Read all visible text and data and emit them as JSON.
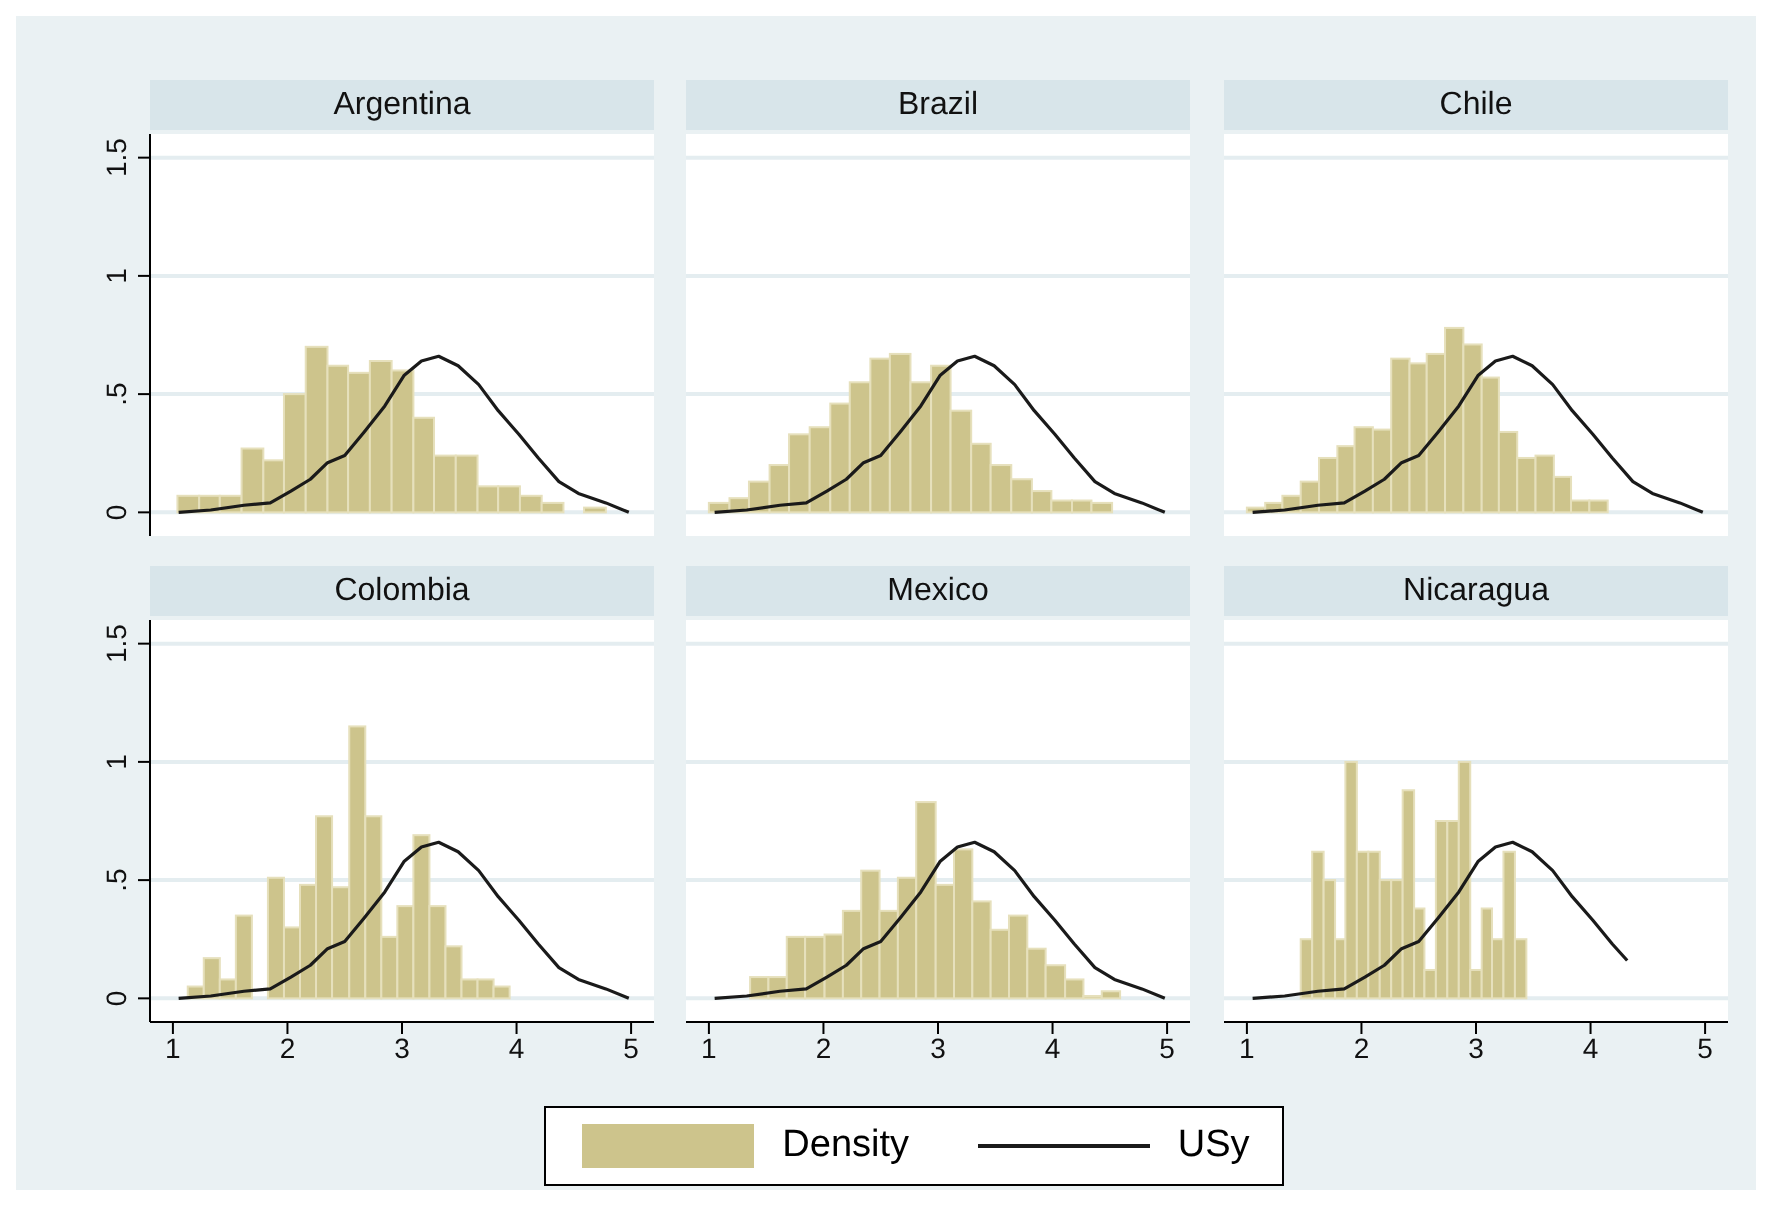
{
  "chart_data": [
    {
      "type": "histogram",
      "title": "Argentina",
      "xlim": [
        0.8,
        5.2
      ],
      "ylim": [
        -0.1,
        1.6
      ],
      "xticks": [
        1,
        2,
        3,
        4,
        5
      ],
      "yticks": [
        {
          "value": 0,
          "label": "0"
        },
        {
          "value": 0.5,
          "label": ".5"
        },
        {
          "value": 1,
          "label": "1"
        },
        {
          "value": 1.5,
          "label": "1.5"
        }
      ],
      "grid": "y",
      "legend": "bottom",
      "tick_labels": "y",
      "series": [
        {
          "name": "Density",
          "color": "#cdc48c",
          "bins": [
            1.04,
            1.23,
            1.41,
            1.6,
            1.79,
            1.97,
            2.16,
            2.35,
            2.53,
            2.72,
            2.91,
            3.1,
            3.28,
            3.47,
            3.66,
            3.84,
            4.03,
            4.22,
            4.41,
            4.59,
            4.78
          ],
          "values": [
            0.07,
            0.07,
            0.07,
            0.27,
            0.22,
            0.5,
            0.7,
            0.62,
            0.59,
            0.64,
            0.6,
            0.4,
            0.24,
            0.24,
            0.11,
            0.11,
            0.07,
            0.04,
            0,
            0.02
          ]
        },
        {
          "name": "USy",
          "type": "line",
          "color": "#1a1a1a",
          "x": [
            1.05,
            1.33,
            1.62,
            1.85,
            2.03,
            2.2,
            2.35,
            2.5,
            2.67,
            2.85,
            3.02,
            3.17,
            3.32,
            3.49,
            3.67,
            3.84,
            4.02,
            4.19,
            4.37,
            4.54,
            4.78,
            4.98
          ],
          "values": [
            0,
            0.01,
            0.03,
            0.04,
            0.09,
            0.14,
            0.21,
            0.24,
            0.34,
            0.45,
            0.58,
            0.64,
            0.66,
            0.62,
            0.54,
            0.43,
            0.33,
            0.23,
            0.13,
            0.08,
            0.04,
            0
          ]
        }
      ]
    },
    {
      "type": "histogram",
      "title": "Brazil",
      "xlim": [
        0.8,
        5.2
      ],
      "ylim": [
        -0.1,
        1.6
      ],
      "xticks": [
        1,
        2,
        3,
        4,
        5
      ],
      "yticks": [
        0,
        0.5,
        1,
        1.5
      ],
      "grid": "y",
      "tick_labels": false,
      "series": [
        {
          "color": "#cdc48c",
          "bins": [
            1.0,
            1.18,
            1.35,
            1.53,
            1.7,
            1.88,
            2.06,
            2.23,
            2.41,
            2.58,
            2.76,
            2.94,
            3.11,
            3.29,
            3.46,
            3.64,
            3.82,
            3.99,
            4.17,
            4.34,
            4.52
          ],
          "values": [
            0.04,
            0.06,
            0.13,
            0.2,
            0.33,
            0.36,
            0.46,
            0.55,
            0.65,
            0.67,
            0.55,
            0.62,
            0.43,
            0.29,
            0.2,
            0.14,
            0.09,
            0.05,
            0.05,
            0.04
          ]
        },
        {
          "type": "line",
          "color": "#1a1a1a",
          "x": [
            1.05,
            1.33,
            1.62,
            1.85,
            2.03,
            2.2,
            2.35,
            2.5,
            2.67,
            2.85,
            3.02,
            3.17,
            3.32,
            3.49,
            3.67,
            3.84,
            4.02,
            4.19,
            4.37,
            4.54,
            4.78,
            4.98
          ],
          "values": [
            0,
            0.01,
            0.03,
            0.04,
            0.09,
            0.14,
            0.21,
            0.24,
            0.34,
            0.45,
            0.58,
            0.64,
            0.66,
            0.62,
            0.54,
            0.43,
            0.33,
            0.23,
            0.13,
            0.08,
            0.04,
            0
          ]
        }
      ]
    },
    {
      "type": "histogram",
      "title": "Chile",
      "xlim": [
        0.8,
        5.2
      ],
      "ylim": [
        -0.1,
        1.6
      ],
      "xticks": [
        1,
        2,
        3,
        4,
        5
      ],
      "yticks": [
        0,
        0.5,
        1,
        1.5
      ],
      "grid": "y",
      "tick_labels": false,
      "series": [
        {
          "color": "#cdc48c",
          "bins": [
            1.0,
            1.16,
            1.31,
            1.47,
            1.63,
            1.79,
            1.94,
            2.1,
            2.26,
            2.42,
            2.57,
            2.73,
            2.89,
            3.05,
            3.2,
            3.36,
            3.52,
            3.68,
            3.83,
            3.99,
            4.15
          ],
          "values": [
            0.02,
            0.04,
            0.07,
            0.13,
            0.23,
            0.28,
            0.36,
            0.35,
            0.65,
            0.63,
            0.67,
            0.78,
            0.71,
            0.57,
            0.34,
            0.23,
            0.24,
            0.15,
            0.05,
            0.05
          ]
        },
        {
          "type": "line",
          "color": "#1a1a1a",
          "x": [
            1.05,
            1.33,
            1.62,
            1.85,
            2.03,
            2.2,
            2.35,
            2.5,
            2.67,
            2.85,
            3.02,
            3.17,
            3.32,
            3.49,
            3.67,
            3.84,
            4.02,
            4.19,
            4.37,
            4.54,
            4.78,
            4.98
          ],
          "values": [
            0,
            0.01,
            0.03,
            0.04,
            0.09,
            0.14,
            0.21,
            0.24,
            0.34,
            0.45,
            0.58,
            0.64,
            0.66,
            0.62,
            0.54,
            0.43,
            0.33,
            0.23,
            0.13,
            0.08,
            0.04,
            0
          ]
        }
      ]
    },
    {
      "type": "histogram",
      "title": "Colombia",
      "xlim": [
        0.8,
        5.2
      ],
      "ylim": [
        -0.1,
        1.6
      ],
      "xticks": [
        1,
        2,
        3,
        4,
        5
      ],
      "yticks": [
        {
          "value": 0,
          "label": "0"
        },
        {
          "value": 0.5,
          "label": ".5"
        },
        {
          "value": 1,
          "label": "1"
        },
        {
          "value": 1.5,
          "label": "1.5"
        }
      ],
      "grid": "y",
      "series": [
        {
          "color": "#cdc48c",
          "bins": [
            1.13,
            1.27,
            1.41,
            1.55,
            1.69,
            1.83,
            1.97,
            2.11,
            2.25,
            2.39,
            2.54,
            2.68,
            2.82,
            2.96,
            3.1,
            3.24,
            3.38,
            3.52,
            3.66,
            3.8,
            3.94
          ],
          "values": [
            0.05,
            0.17,
            0.08,
            0.35,
            0,
            0.51,
            0.3,
            0.48,
            0.77,
            0.47,
            1.15,
            0.77,
            0.26,
            0.39,
            0.69,
            0.39,
            0.22,
            0.08,
            0.08,
            0.05
          ]
        },
        {
          "type": "line",
          "color": "#1a1a1a",
          "x": [
            1.05,
            1.33,
            1.62,
            1.85,
            2.03,
            2.2,
            2.35,
            2.5,
            2.67,
            2.85,
            3.02,
            3.17,
            3.32,
            3.49,
            3.67,
            3.84,
            4.02,
            4.19,
            4.37,
            4.54,
            4.78,
            4.98
          ],
          "values": [
            0,
            0.01,
            0.03,
            0.04,
            0.09,
            0.14,
            0.21,
            0.24,
            0.34,
            0.45,
            0.58,
            0.64,
            0.66,
            0.62,
            0.54,
            0.43,
            0.33,
            0.23,
            0.13,
            0.08,
            0.04,
            0
          ]
        }
      ]
    },
    {
      "type": "histogram",
      "title": "Mexico",
      "xlim": [
        0.8,
        5.2
      ],
      "ylim": [
        -0.1,
        1.6
      ],
      "xticks": [
        1,
        2,
        3,
        4,
        5
      ],
      "yticks": [
        0,
        0.5,
        1,
        1.5
      ],
      "grid": "y",
      "tick_labels": "x",
      "series": [
        {
          "color": "#cdc48c",
          "bins": [
            1.36,
            1.52,
            1.68,
            1.84,
            2.01,
            2.17,
            2.33,
            2.49,
            2.65,
            2.81,
            2.98,
            3.14,
            3.3,
            3.46,
            3.62,
            3.78,
            3.94,
            4.11,
            4.27,
            4.43,
            4.59
          ],
          "values": [
            0.09,
            0.09,
            0.26,
            0.26,
            0.27,
            0.37,
            0.54,
            0.37,
            0.51,
            0.83,
            0.48,
            0.63,
            0.41,
            0.29,
            0.35,
            0.21,
            0.14,
            0.08,
            0.01,
            0.03
          ]
        },
        {
          "type": "line",
          "color": "#1a1a1a",
          "x": [
            1.05,
            1.33,
            1.62,
            1.85,
            2.03,
            2.2,
            2.35,
            2.5,
            2.67,
            2.85,
            3.02,
            3.17,
            3.32,
            3.49,
            3.67,
            3.84,
            4.02,
            4.19,
            4.37,
            4.54,
            4.78,
            4.98
          ],
          "values": [
            0,
            0.01,
            0.03,
            0.04,
            0.09,
            0.14,
            0.21,
            0.24,
            0.34,
            0.45,
            0.58,
            0.64,
            0.66,
            0.62,
            0.54,
            0.43,
            0.33,
            0.23,
            0.13,
            0.08,
            0.04,
            0
          ]
        }
      ]
    },
    {
      "type": "histogram",
      "title": "Nicaragua",
      "xlim": [
        0.8,
        5.2
      ],
      "ylim": [
        -0.1,
        1.6
      ],
      "xticks": [
        1,
        2,
        3,
        4,
        5
      ],
      "yticks": [
        0,
        0.5,
        1,
        1.5
      ],
      "grid": "y",
      "tick_labels": "x",
      "series": [
        {
          "color": "#cdc48c",
          "bins": [
            1.47,
            1.57,
            1.67,
            1.77,
            1.86,
            1.96,
            2.06,
            2.16,
            2.26,
            2.36,
            2.46,
            2.55,
            2.65,
            2.75,
            2.85,
            2.95,
            3.05,
            3.14,
            3.24,
            3.34,
            3.44
          ],
          "values": [
            0.25,
            0.62,
            0.5,
            0.25,
            1.0,
            0.62,
            0.62,
            0.5,
            0.5,
            0.88,
            0.38,
            0.12,
            0.75,
            0.75,
            1.0,
            0.12,
            0.38,
            0.25,
            0.62,
            0.25
          ]
        },
        {
          "type": "line",
          "color": "#1a1a1a",
          "x": [
            1.05,
            1.33,
            1.62,
            1.85,
            2.03,
            2.2,
            2.35,
            2.5,
            2.67,
            2.85,
            3.02,
            3.17,
            3.32,
            3.49,
            3.67,
            3.84,
            4.02,
            4.19,
            4.32
          ],
          "values": [
            0,
            0.01,
            0.03,
            0.04,
            0.09,
            0.14,
            0.21,
            0.24,
            0.34,
            0.45,
            0.58,
            0.64,
            0.66,
            0.62,
            0.54,
            0.43,
            0.33,
            0.23,
            0.16
          ]
        }
      ]
    }
  ]
}
